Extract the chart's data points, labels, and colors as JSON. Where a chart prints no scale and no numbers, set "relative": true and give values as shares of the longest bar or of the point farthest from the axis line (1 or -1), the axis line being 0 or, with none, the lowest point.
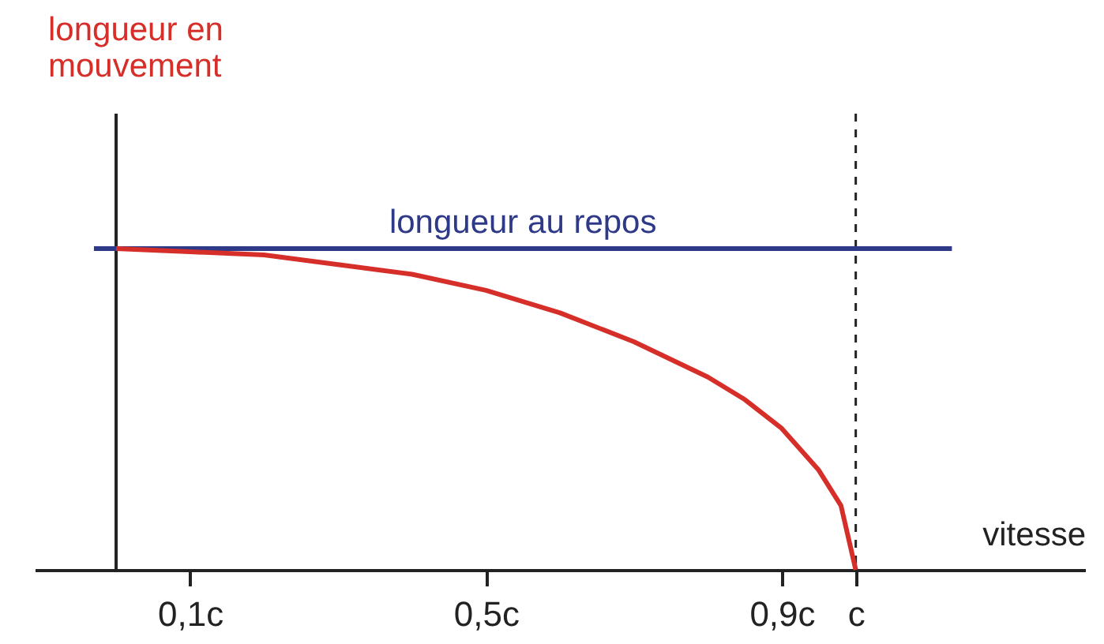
{
  "chart_data": {
    "type": "line",
    "relative": true,
    "xlabel": "vitesse",
    "ylabel": "longueur en mouvement",
    "xlim": [
      -0.11,
      1.31
    ],
    "xticks": [
      {
        "value": 0.1,
        "label": "0,1c"
      },
      {
        "value": 0.5,
        "label": "0,5c"
      },
      {
        "value": 0.9,
        "label": "0,9c"
      },
      {
        "value": 1,
        "label": "c"
      }
    ],
    "grid": false,
    "marker": "none",
    "series": [
      {
        "name": "longueur au repos",
        "color": "#2e3a87",
        "x": [
          -0.03,
          1.13
        ],
        "values": [
          1,
          1
        ]
      },
      {
        "color": "#d62f2a",
        "x": [
          0,
          0.1,
          0.2,
          0.3,
          0.4,
          0.5,
          0.6,
          0.7,
          0.8,
          0.85,
          0.9,
          0.95,
          0.98,
          1.0
        ],
        "values": [
          1,
          0.99,
          0.98,
          0.95,
          0.92,
          0.87,
          0.8,
          0.71,
          0.6,
          0.53,
          0.44,
          0.31,
          0.2,
          0
        ]
      }
    ],
    "ref_lines": [
      {
        "axis": "x",
        "value": 1,
        "color": "#222222",
        "line_style": "dashed"
      }
    ]
  }
}
